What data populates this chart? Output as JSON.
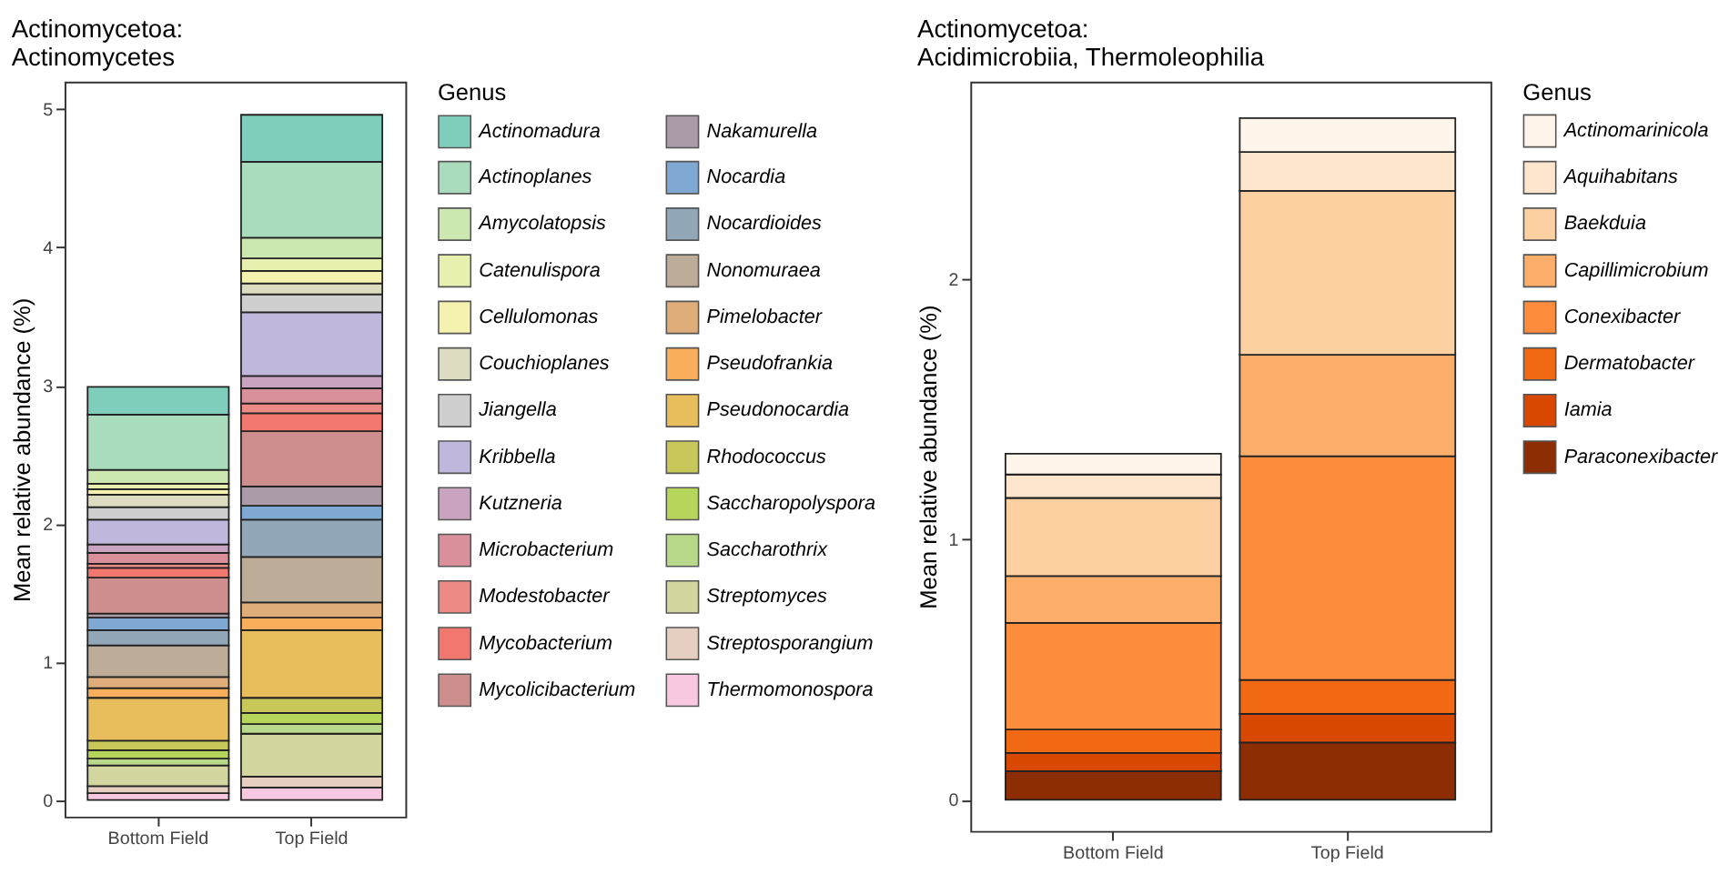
{
  "chart_data": [
    {
      "type": "bar",
      "stacked": true,
      "title": "Actinomycetoa:\nActinomycetes",
      "ylabel": "Mean relative abundance (%)",
      "legend_title": "Genus",
      "legend": "right",
      "grid": false,
      "categories": [
        "Bottom Field",
        "Top Field"
      ],
      "ylim": [
        -0.12,
        5.2
      ],
      "yticks": [
        0,
        1,
        2,
        3,
        4,
        5
      ],
      "series": [
        {
          "name": "Thermomonospora",
          "color": "#f8c8e0",
          "values": [
            0.05,
            0.09
          ]
        },
        {
          "name": "Streptosporangium",
          "color": "#e6cfc0",
          "values": [
            0.05,
            0.08
          ]
        },
        {
          "name": "Streptomyces",
          "color": "#d4d6a0",
          "values": [
            0.15,
            0.31
          ]
        },
        {
          "name": "Saccharothrix",
          "color": "#b8d98a",
          "values": [
            0.05,
            0.07
          ]
        },
        {
          "name": "Saccharopolyspora",
          "color": "#b5d65a",
          "values": [
            0.06,
            0.08
          ]
        },
        {
          "name": "Rhodococcus",
          "color": "#c8c85a",
          "values": [
            0.07,
            0.11
          ]
        },
        {
          "name": "Pseudonocardia",
          "color": "#e8bd5c",
          "values": [
            0.31,
            0.49
          ]
        },
        {
          "name": "Pseudofrankia",
          "color": "#f8ae5a",
          "values": [
            0.07,
            0.09
          ]
        },
        {
          "name": "Pimelobacter",
          "color": "#dfad7a",
          "values": [
            0.08,
            0.11
          ]
        },
        {
          "name": "Nonomuraea",
          "color": "#bcac98",
          "values": [
            0.23,
            0.33
          ]
        },
        {
          "name": "Nocardioides",
          "color": "#92a7b8",
          "values": [
            0.11,
            0.27
          ]
        },
        {
          "name": "Nocardia",
          "color": "#7fa8d2",
          "values": [
            0.09,
            0.1
          ]
        },
        {
          "name": "Nakamurella",
          "color": "#ab9aa8",
          "values": [
            0.03,
            0.14
          ]
        },
        {
          "name": "Mycolicibacterium",
          "color": "#cf8e8e",
          "values": [
            0.26,
            0.4
          ]
        },
        {
          "name": "Mycobacterium",
          "color": "#f2776f",
          "values": [
            0.07,
            0.13
          ]
        },
        {
          "name": "Modestobacter",
          "color": "#ee8a86",
          "values": [
            0.03,
            0.07
          ]
        },
        {
          "name": "Microbacterium",
          "color": "#d9909a",
          "values": [
            0.08,
            0.11
          ]
        },
        {
          "name": "Kutzneria",
          "color": "#c9a3c0",
          "values": [
            0.06,
            0.09
          ]
        },
        {
          "name": "Kribbella",
          "color": "#bfb8dc",
          "values": [
            0.18,
            0.46
          ]
        },
        {
          "name": "Jiangella",
          "color": "#cfcfcf",
          "values": [
            0.09,
            0.13
          ]
        },
        {
          "name": "Couchioplanes",
          "color": "#dedcc0",
          "values": [
            0.09,
            0.08
          ]
        },
        {
          "name": "Cellulomonas",
          "color": "#f5f2b0",
          "values": [
            0.04,
            0.09
          ]
        },
        {
          "name": "Catenulispora",
          "color": "#e8f0b0",
          "values": [
            0.04,
            0.09
          ]
        },
        {
          "name": "Amycolatopsis",
          "color": "#cce8b0",
          "values": [
            0.1,
            0.15
          ]
        },
        {
          "name": "Actinoplanes",
          "color": "#a8dcbc",
          "values": [
            0.4,
            0.55
          ]
        },
        {
          "name": "Actinomadura",
          "color": "#7fcdbb",
          "values": [
            0.2,
            0.34
          ]
        }
      ]
    },
    {
      "type": "bar",
      "stacked": true,
      "title": "Actinomycetoa:\nAcidimicrobiia, Thermoleophilia",
      "ylabel": "Mean relative abundance (%)",
      "legend_title": "Genus",
      "legend": "right",
      "grid": false,
      "categories": [
        "Bottom Field",
        "Top Field"
      ],
      "ylim": [
        -0.12,
        2.76
      ],
      "yticks": [
        0,
        1,
        2
      ],
      "series": [
        {
          "name": "Paraconexibacter",
          "color": "#8c2d04",
          "values": [
            0.11,
            0.22
          ]
        },
        {
          "name": "Iamia",
          "color": "#d94801",
          "values": [
            0.07,
            0.11
          ]
        },
        {
          "name": "Dermatobacter",
          "color": "#f16913",
          "values": [
            0.09,
            0.13
          ]
        },
        {
          "name": "Conexibacter",
          "color": "#fd8d3c",
          "values": [
            0.41,
            0.86
          ]
        },
        {
          "name": "Capillimicrobium",
          "color": "#fdae6b",
          "values": [
            0.18,
            0.39
          ]
        },
        {
          "name": "Baekduia",
          "color": "#fdd0a2",
          "values": [
            0.3,
            0.63
          ]
        },
        {
          "name": "Aquihabitans",
          "color": "#fee6ce",
          "values": [
            0.09,
            0.15
          ]
        },
        {
          "name": "Actinomarinicola",
          "color": "#fff5eb",
          "values": [
            0.08,
            0.13
          ]
        }
      ]
    }
  ]
}
